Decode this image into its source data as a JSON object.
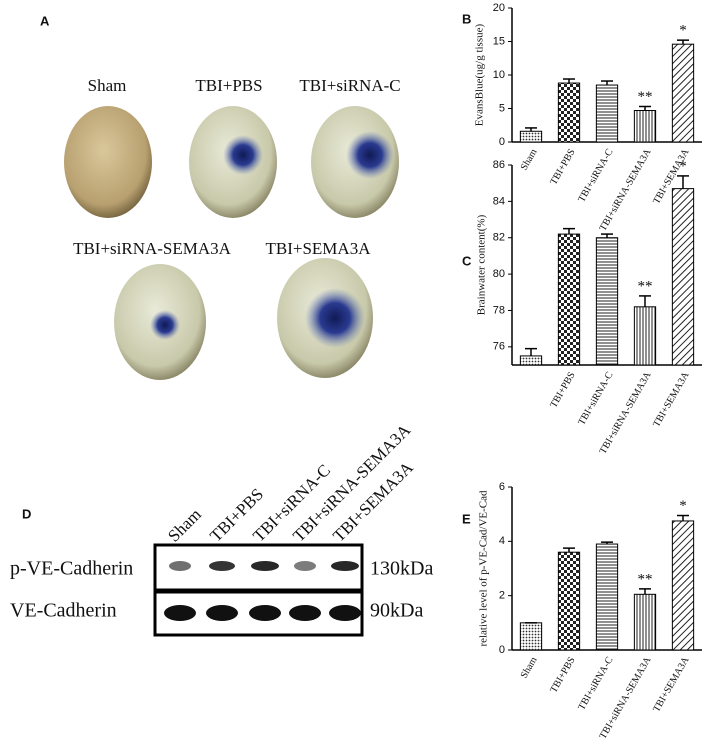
{
  "panel_labels": [
    "A",
    "B",
    "C",
    "D",
    "E"
  ],
  "brain_images": {
    "labels": [
      "Sham",
      "TBI+PBS",
      "TBI+siRNA-C",
      "TBI+siRNA-SEMA3A",
      "TBI+SEMA3A"
    ]
  },
  "western_blot": {
    "lanes": [
      "Sham",
      "TBI+PBS",
      "TBI+siRNA-C",
      "TBI+siRNA-SEMA3A",
      "TBI+SEMA3A"
    ],
    "rows": [
      {
        "name": "p-VE-Cadherin",
        "size": "130kDa"
      },
      {
        "name": "VE-Cadherin",
        "size": "90kDa"
      }
    ]
  },
  "chart_data": [
    {
      "type": "bar",
      "y_label": "EvansBlue(ug/g tissue)",
      "categories": [
        "Sham",
        "TBI+PBS",
        "TBI+siRNA-C",
        "TBI+siRNA-SEMA3A",
        "TBI+SEMA3A"
      ],
      "values": [
        1.6,
        8.8,
        8.5,
        4.7,
        14.6
      ],
      "errors": [
        0.5,
        0.6,
        0.6,
        0.6,
        0.6
      ],
      "significance": [
        null,
        null,
        null,
        "**",
        "*"
      ],
      "patterns": [
        "dots",
        "checker",
        "horizontal",
        "vertical",
        "diagonal"
      ],
      "ylim": [
        0,
        20
      ],
      "yticks": [
        0,
        5,
        10,
        15,
        20
      ]
    },
    {
      "type": "bar",
      "y_label": "Brainwater content(%)",
      "categories": [
        null,
        "TBI+PBS",
        "TBI+siRNA-C",
        "TBI+siRNA-SEMA3A",
        "TBI+SEMA3A"
      ],
      "values": [
        75.5,
        82.2,
        82.0,
        78.2,
        84.7
      ],
      "errors": [
        0.4,
        0.3,
        0.2,
        0.6,
        0.7
      ],
      "significance": [
        null,
        null,
        null,
        "**",
        "*"
      ],
      "patterns": [
        "dots",
        "checker",
        "horizontal",
        "vertical",
        "diagonal"
      ],
      "ylim": [
        75,
        86
      ],
      "yticks": [
        76,
        78,
        80,
        82,
        84,
        86
      ]
    },
    {
      "type": "bar",
      "y_label": "relative level of p-VE-Cad/VE-Cad",
      "categories": [
        "Sham",
        "TBI+PBS",
        "TBI+siRNA-C",
        "TBI+siRNA-SEMA3A",
        "TBI+SEMA3A"
      ],
      "values": [
        1.0,
        3.6,
        3.9,
        2.05,
        4.75
      ],
      "errors": [
        0,
        0.15,
        0.07,
        0.2,
        0.2
      ],
      "significance": [
        null,
        null,
        null,
        "**",
        "*"
      ],
      "patterns": [
        "dots",
        "checker",
        "horizontal",
        "vertical",
        "diagonal"
      ],
      "ylim": [
        0,
        6
      ],
      "yticks": [
        0,
        2,
        4,
        6
      ]
    }
  ]
}
